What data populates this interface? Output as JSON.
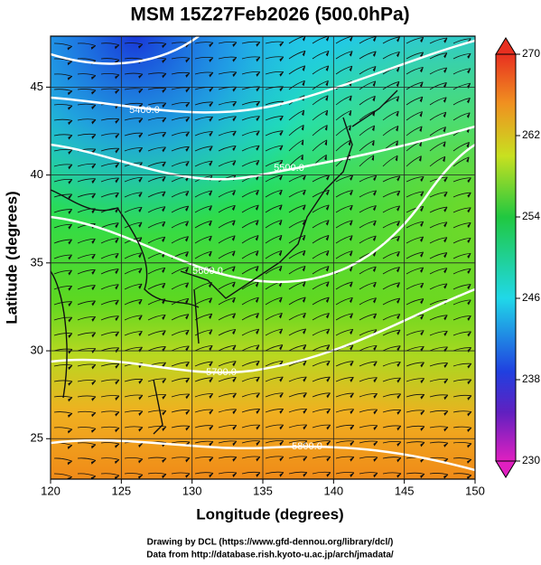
{
  "chart_data": {
    "type": "map",
    "title": "MSM 15Z27Feb2026 (500.0hPa)",
    "xlabel": "Longitude (degrees)",
    "ylabel": "Latitude  (degrees)",
    "xlim": [
      120,
      150
    ],
    "xticks": [
      120,
      125,
      130,
      135,
      140,
      145,
      150
    ],
    "ylim": [
      22.7,
      47.9
    ],
    "yticks": [
      25,
      30,
      35,
      40,
      45
    ],
    "colorbar": {
      "lim": [
        230,
        270
      ],
      "ticks": [
        230,
        238,
        246,
        254,
        262,
        270
      ]
    },
    "contour_labels": [
      "5400.0",
      "5500.0",
      "5600.0",
      "5700.0",
      "5800.0"
    ],
    "footer": [
      "Drawing by DCL (https://www.gfd-dennou.org/library/dcl/)",
      "Data from http://database.rish.kyoto-u.ac.jp/arch/jmadata/"
    ]
  }
}
